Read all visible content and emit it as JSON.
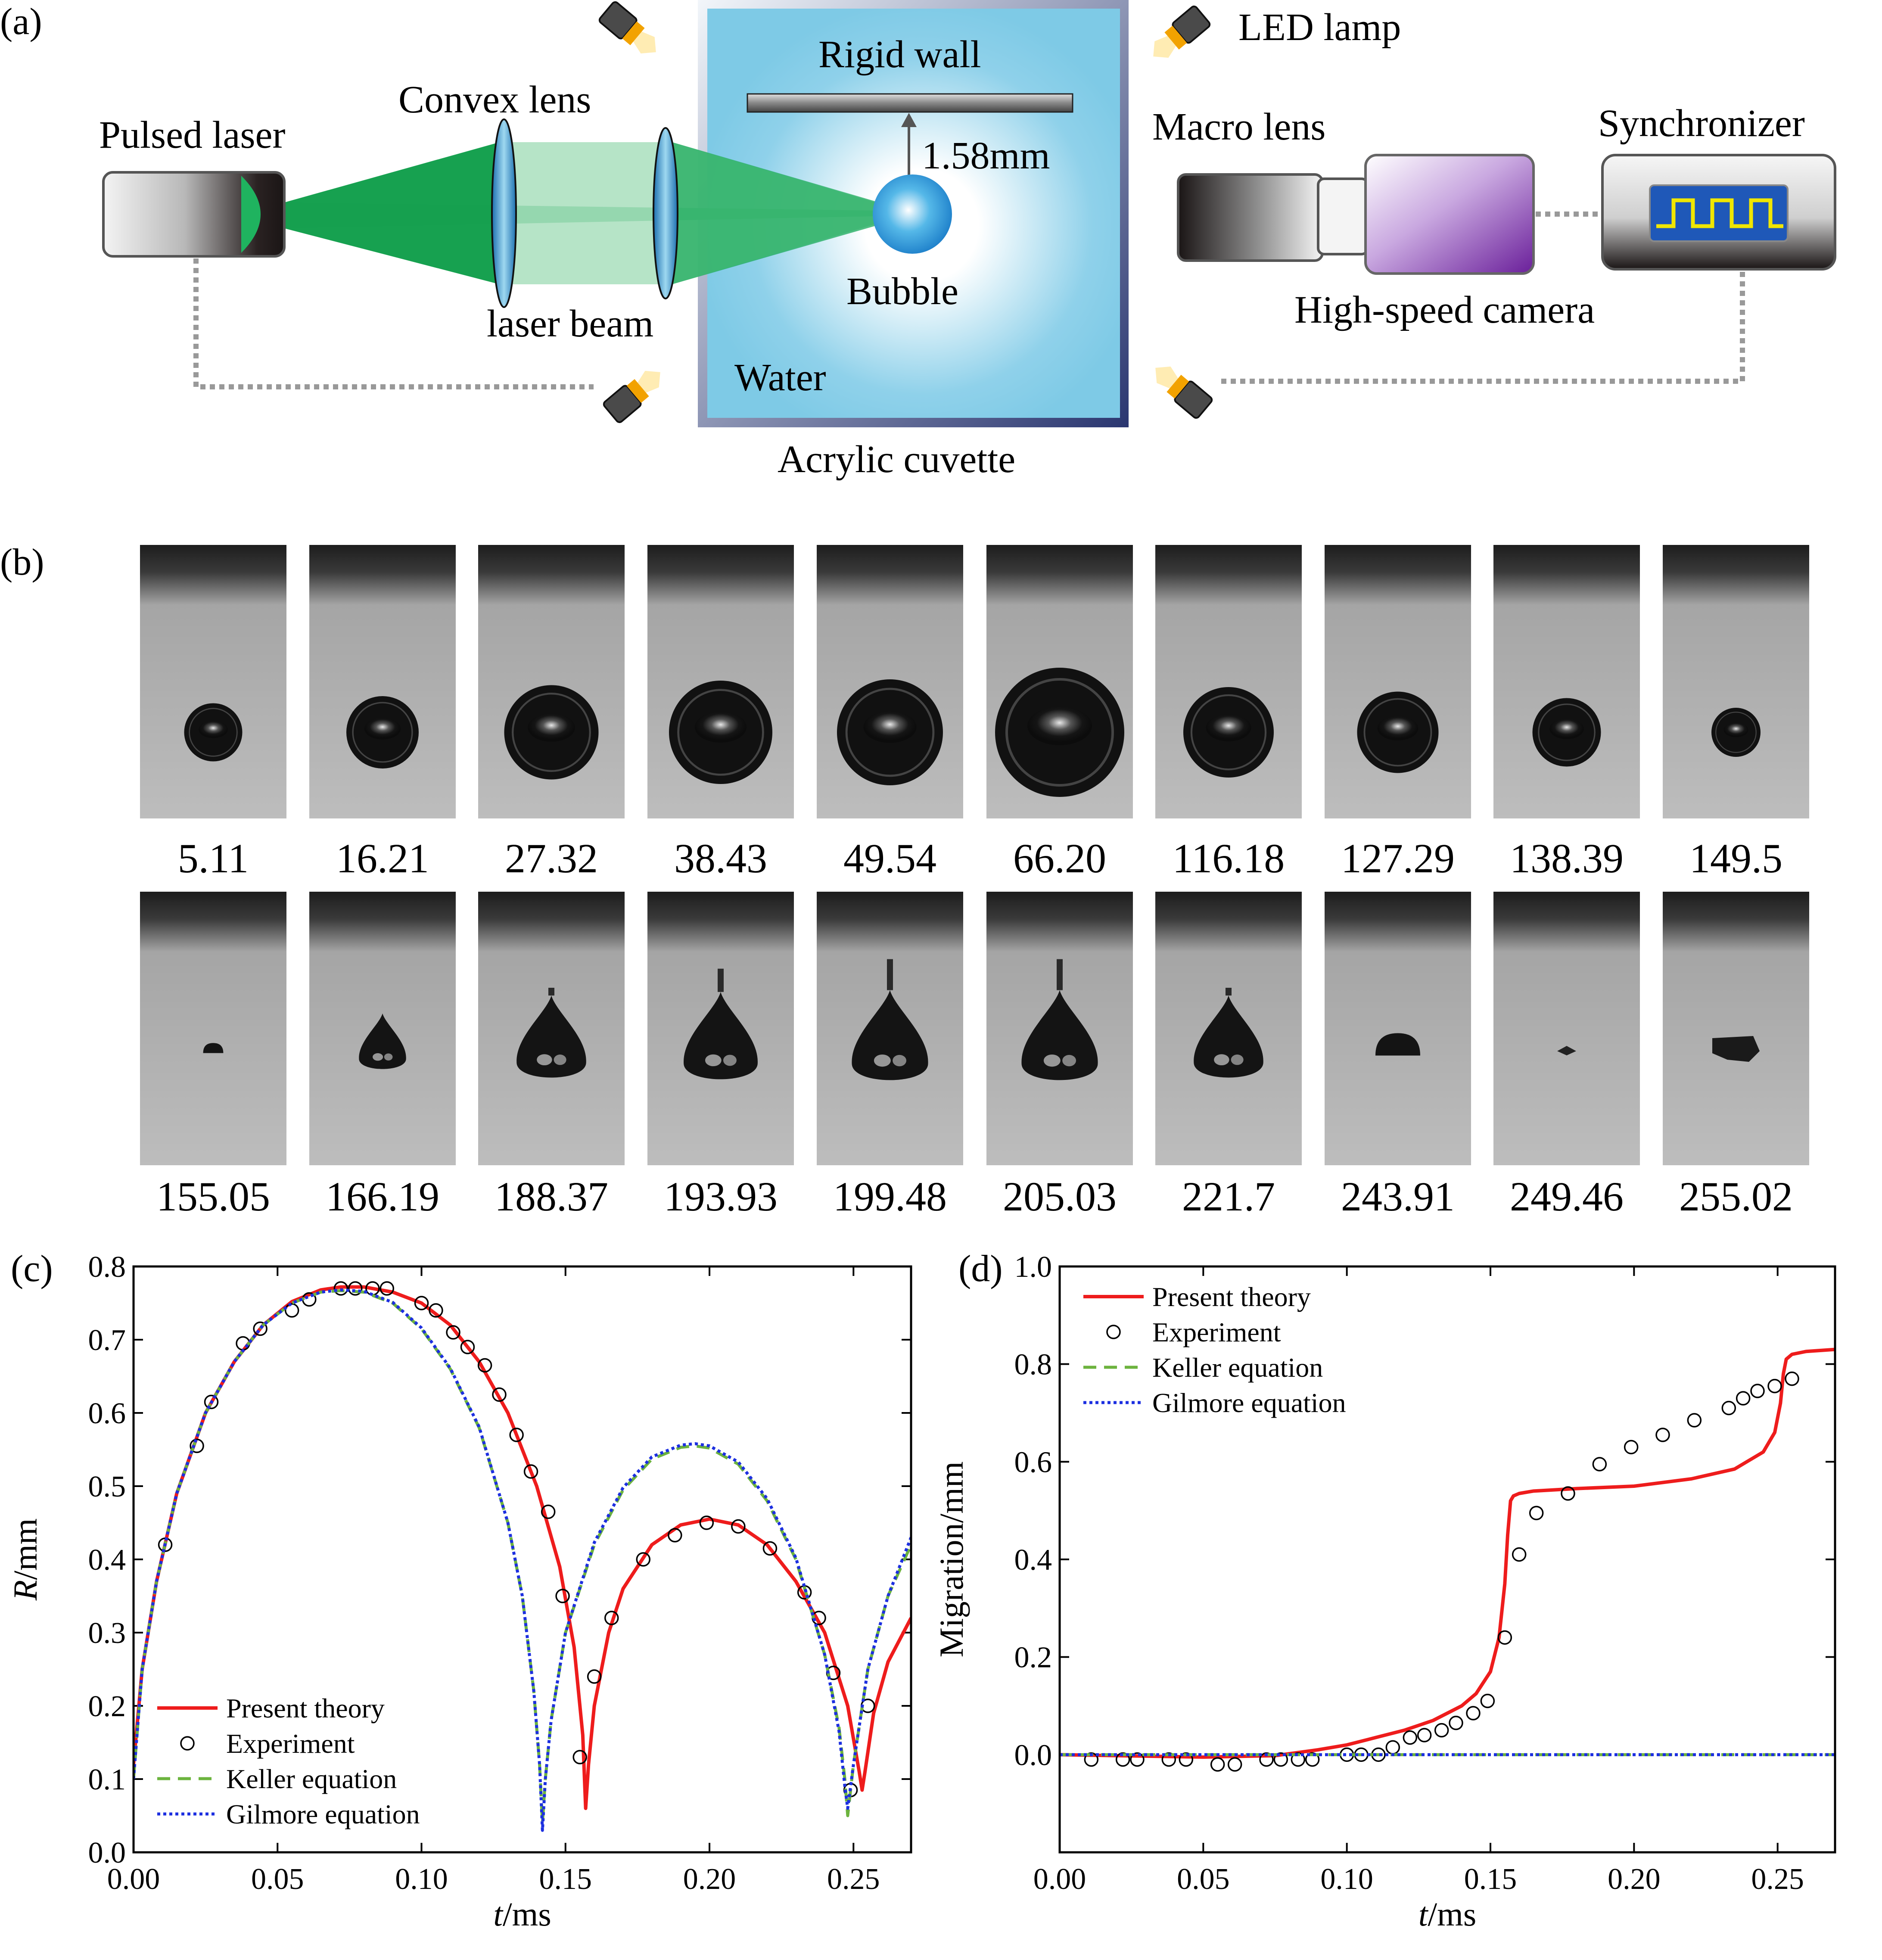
{
  "panel_a": {
    "label": "(a)",
    "pulsed_laser": "Pulsed laser",
    "convex_lens": "Convex lens",
    "laser_beam": "laser beam",
    "rigid_wall": "Rigid wall",
    "distance": "1.58mm",
    "bubble": "Bubble",
    "water": "Water",
    "cuvette": "Acrylic cuvette",
    "led_lamp": "LED lamp",
    "macro_lens": "Macro lens",
    "synchronizer": "Synchronizer",
    "camera": "High-speed camera",
    "colors": {
      "beam": "#0f9d4a",
      "water": "#7ecae6",
      "camera": "#8a3fb0",
      "screen": "#1f58b8",
      "signal": "#f0e600"
    }
  },
  "panel_b": {
    "label": "(b)",
    "row1": [
      {
        "time": "5.11",
        "shape": "sphere",
        "size": 0.45
      },
      {
        "time": "16.21",
        "shape": "sphere",
        "size": 0.56
      },
      {
        "time": "27.32",
        "shape": "sphere",
        "size": 0.73
      },
      {
        "time": "38.43",
        "shape": "sphere",
        "size": 0.8
      },
      {
        "time": "49.54",
        "shape": "sphere",
        "size": 0.82
      },
      {
        "time": "66.20",
        "shape": "sphere",
        "size": 1.0
      },
      {
        "time": "116.18",
        "shape": "sphere",
        "size": 0.7
      },
      {
        "time": "127.29",
        "shape": "sphere",
        "size": 0.63
      },
      {
        "time": "138.39",
        "shape": "sphere",
        "size": 0.53
      },
      {
        "time": "149.5",
        "shape": "sphere",
        "size": 0.38
      }
    ],
    "row2": [
      {
        "time": "155.05",
        "shape": "cap",
        "size": 0.18
      },
      {
        "time": "166.19",
        "shape": "drop",
        "size": 0.42
      },
      {
        "time": "188.37",
        "shape": "drop",
        "size": 0.62
      },
      {
        "time": "193.93",
        "shape": "drop",
        "size": 0.66
      },
      {
        "time": "199.48",
        "shape": "drop",
        "size": 0.68
      },
      {
        "time": "205.03",
        "shape": "drop",
        "size": 0.68
      },
      {
        "time": "221.7",
        "shape": "drop",
        "size": 0.62
      },
      {
        "time": "243.91",
        "shape": "cap",
        "size": 0.4
      },
      {
        "time": "249.46",
        "shape": "speck",
        "size": 0.12
      },
      {
        "time": "255.02",
        "shape": "cloud",
        "size": 0.25
      }
    ]
  },
  "chart_data": [
    {
      "panel": "(c)",
      "type": "line",
      "xlabel": "t/ms",
      "ylabel": "R/mm",
      "xlim": [
        0,
        0.27
      ],
      "ylim": [
        0,
        0.8
      ],
      "xticks": [
        "0.00",
        "0.05",
        "0.10",
        "0.15",
        "0.20",
        "0.25"
      ],
      "yticks": [
        "0.0",
        "0.1",
        "0.2",
        "0.3",
        "0.4",
        "0.5",
        "0.6",
        "0.7",
        "0.8"
      ],
      "legend_position": "bottom-left",
      "series": [
        {
          "name": "Present theory",
          "style": "solid",
          "color": "#ee1c1c",
          "x": [
            0,
            0.003,
            0.008,
            0.015,
            0.025,
            0.035,
            0.045,
            0.055,
            0.065,
            0.072,
            0.08,
            0.09,
            0.1,
            0.11,
            0.12,
            0.13,
            0.14,
            0.148,
            0.153,
            0.156,
            0.157,
            0.158,
            0.16,
            0.165,
            0.17,
            0.18,
            0.19,
            0.2,
            0.21,
            0.22,
            0.23,
            0.24,
            0.248,
            0.252,
            0.253,
            0.254,
            0.257,
            0.262,
            0.27
          ],
          "y": [
            0.12,
            0.25,
            0.37,
            0.49,
            0.6,
            0.67,
            0.72,
            0.752,
            0.768,
            0.772,
            0.772,
            0.765,
            0.75,
            0.72,
            0.67,
            0.6,
            0.5,
            0.39,
            0.28,
            0.16,
            0.06,
            0.12,
            0.2,
            0.3,
            0.36,
            0.42,
            0.447,
            0.455,
            0.447,
            0.42,
            0.37,
            0.3,
            0.2,
            0.11,
            0.085,
            0.11,
            0.19,
            0.26,
            0.32
          ]
        },
        {
          "name": "Experiment",
          "style": "marker",
          "x": [
            0.011,
            0.022,
            0.027,
            0.038,
            0.044,
            0.055,
            0.061,
            0.072,
            0.077,
            0.083,
            0.088,
            0.1,
            0.105,
            0.111,
            0.116,
            0.122,
            0.127,
            0.133,
            0.138,
            0.144,
            0.149,
            0.155,
            0.16,
            0.166,
            0.177,
            0.188,
            0.199,
            0.21,
            0.221,
            0.233,
            0.238,
            0.243,
            0.249,
            0.255
          ],
          "y": [
            0.42,
            0.555,
            0.615,
            0.695,
            0.715,
            0.74,
            0.755,
            0.77,
            0.77,
            0.77,
            0.77,
            0.75,
            0.74,
            0.71,
            0.69,
            0.665,
            0.625,
            0.57,
            0.52,
            0.465,
            0.35,
            0.13,
            0.24,
            0.32,
            0.4,
            0.433,
            0.45,
            0.445,
            0.415,
            0.355,
            0.32,
            0.245,
            0.085,
            0.2
          ]
        },
        {
          "name": "Keller equation",
          "style": "dashed",
          "color": "#6cb33e",
          "x": [
            0,
            0.003,
            0.008,
            0.015,
            0.025,
            0.035,
            0.045,
            0.055,
            0.065,
            0.072,
            0.08,
            0.09,
            0.1,
            0.11,
            0.12,
            0.13,
            0.135,
            0.139,
            0.141,
            0.142,
            0.143,
            0.145,
            0.15,
            0.16,
            0.17,
            0.18,
            0.19,
            0.195,
            0.2,
            0.21,
            0.22,
            0.23,
            0.24,
            0.245,
            0.247,
            0.248,
            0.25,
            0.255,
            0.262,
            0.27
          ],
          "y": [
            0.1,
            0.25,
            0.37,
            0.49,
            0.6,
            0.67,
            0.72,
            0.75,
            0.765,
            0.767,
            0.765,
            0.75,
            0.715,
            0.66,
            0.58,
            0.45,
            0.35,
            0.22,
            0.12,
            0.04,
            0.1,
            0.18,
            0.3,
            0.42,
            0.495,
            0.537,
            0.553,
            0.555,
            0.552,
            0.53,
            0.48,
            0.4,
            0.27,
            0.17,
            0.1,
            0.05,
            0.12,
            0.25,
            0.35,
            0.42
          ]
        },
        {
          "name": "Gilmore equation",
          "style": "dotted",
          "color": "#1c2fe0",
          "x": [
            0,
            0.003,
            0.008,
            0.015,
            0.025,
            0.035,
            0.045,
            0.055,
            0.065,
            0.072,
            0.08,
            0.09,
            0.1,
            0.11,
            0.12,
            0.13,
            0.135,
            0.139,
            0.141,
            0.142,
            0.143,
            0.145,
            0.15,
            0.16,
            0.17,
            0.18,
            0.19,
            0.195,
            0.2,
            0.21,
            0.22,
            0.23,
            0.24,
            0.245,
            0.247,
            0.248,
            0.25,
            0.255,
            0.262,
            0.27
          ],
          "y": [
            0.1,
            0.25,
            0.37,
            0.49,
            0.6,
            0.67,
            0.72,
            0.75,
            0.765,
            0.768,
            0.766,
            0.751,
            0.716,
            0.661,
            0.581,
            0.45,
            0.35,
            0.22,
            0.12,
            0.03,
            0.1,
            0.18,
            0.3,
            0.423,
            0.498,
            0.54,
            0.556,
            0.558,
            0.555,
            0.533,
            0.483,
            0.402,
            0.27,
            0.165,
            0.09,
            0.06,
            0.12,
            0.25,
            0.35,
            0.43
          ]
        }
      ]
    },
    {
      "panel": "(d)",
      "type": "line",
      "xlabel": "t/ms",
      "ylabel": "Migration/mm",
      "xlim": [
        0,
        0.27
      ],
      "ylim": [
        -0.2,
        1.0
      ],
      "xticks": [
        "0.00",
        "0.05",
        "0.10",
        "0.15",
        "0.20",
        "0.25"
      ],
      "yticks": [
        "0.0",
        "0.2",
        "0.4",
        "0.6",
        "0.8",
        "1.0"
      ],
      "legend_position": "top-left",
      "series": [
        {
          "name": "Present theory",
          "style": "solid",
          "color": "#ee1c1c",
          "x": [
            0,
            0.05,
            0.075,
            0.09,
            0.1,
            0.11,
            0.12,
            0.13,
            0.14,
            0.145,
            0.15,
            0.153,
            0.155,
            0.156,
            0.157,
            0.158,
            0.16,
            0.165,
            0.18,
            0.2,
            0.22,
            0.235,
            0.245,
            0.249,
            0.251,
            0.252,
            0.253,
            0.255,
            0.26,
            0.27
          ],
          "y": [
            0,
            -0.005,
            -0.002,
            0.01,
            0.02,
            0.035,
            0.05,
            0.07,
            0.1,
            0.125,
            0.17,
            0.24,
            0.35,
            0.45,
            0.52,
            0.53,
            0.535,
            0.54,
            0.545,
            0.55,
            0.565,
            0.585,
            0.62,
            0.66,
            0.72,
            0.78,
            0.81,
            0.82,
            0.826,
            0.83
          ]
        },
        {
          "name": "Experiment",
          "style": "marker",
          "x": [
            0.011,
            0.022,
            0.027,
            0.038,
            0.044,
            0.055,
            0.061,
            0.072,
            0.077,
            0.083,
            0.088,
            0.1,
            0.105,
            0.111,
            0.116,
            0.122,
            0.127,
            0.133,
            0.138,
            0.144,
            0.149,
            0.155,
            0.16,
            0.166,
            0.177,
            0.188,
            0.199,
            0.21,
            0.221,
            0.233,
            0.238,
            0.243,
            0.249,
            0.255
          ],
          "y": [
            -0.01,
            -0.01,
            -0.01,
            -0.01,
            -0.01,
            -0.02,
            -0.02,
            -0.01,
            -0.01,
            -0.01,
            -0.01,
            0,
            0,
            0,
            0.015,
            0.035,
            0.04,
            0.05,
            0.065,
            0.085,
            0.11,
            0.24,
            0.41,
            0.495,
            0.535,
            0.595,
            0.63,
            0.655,
            0.685,
            0.71,
            0.73,
            0.745,
            0.755,
            0.77
          ]
        },
        {
          "name": "Keller equation",
          "style": "dashed",
          "color": "#6cb33e",
          "x": [
            0,
            0.27
          ],
          "y": [
            0,
            0
          ]
        },
        {
          "name": "Gilmore equation",
          "style": "dotted",
          "color": "#1c2fe0",
          "x": [
            0,
            0.27
          ],
          "y": [
            0,
            0
          ]
        }
      ]
    }
  ]
}
